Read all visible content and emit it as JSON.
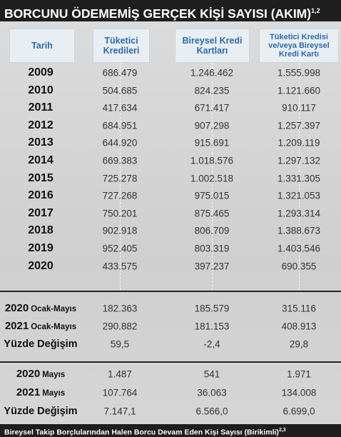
{
  "title": "BORCUNU ÖDEMEMİŞ GERÇEK KİŞİ SAYISI (AKIM)",
  "title_note": "1,2",
  "headers": [
    "Tarih",
    "Tüketici Kredileri",
    "Bireysel Kredi Kartları",
    "Tüketici Kredisi ve/veya Bireysel Kredi Kartı"
  ],
  "sections": [
    {
      "rows": [
        {
          "label": [
            "2009"
          ],
          "cells": [
            "686.479",
            "1.246.462",
            "1.555.998"
          ]
        },
        {
          "label": [
            "2010"
          ],
          "cells": [
            "504.685",
            "824.235",
            "1.121.660"
          ]
        },
        {
          "label": [
            "2011"
          ],
          "cells": [
            "417.634",
            "671.417",
            "910.117"
          ]
        },
        {
          "label": [
            "2012"
          ],
          "cells": [
            "684.951",
            "907.298",
            "1.257.397"
          ]
        },
        {
          "label": [
            "2013"
          ],
          "cells": [
            "644.920",
            "915.691",
            "1.209.119"
          ]
        },
        {
          "label": [
            "2014"
          ],
          "cells": [
            "669.383",
            "1.018.576",
            "1.297.132"
          ]
        },
        {
          "label": [
            "2015"
          ],
          "cells": [
            "725.278",
            "1.002.518",
            "1.331.305"
          ]
        },
        {
          "label": [
            "2016"
          ],
          "cells": [
            "727.268",
            "975.015",
            "1.321.053"
          ]
        },
        {
          "label": [
            "2017"
          ],
          "cells": [
            "750.201",
            "875.465",
            "1.293.314"
          ]
        },
        {
          "label": [
            "2018"
          ],
          "cells": [
            "902.918",
            "806.709",
            "1.388.673"
          ]
        },
        {
          "label": [
            "2019"
          ],
          "cells": [
            "952.405",
            "803.319",
            "1.403.546"
          ]
        },
        {
          "label": [
            "2020"
          ],
          "cells": [
            "433.575",
            "397.237",
            "690.355"
          ]
        }
      ]
    },
    {
      "rows": [
        {
          "label": [
            "2020",
            "Ocak-Mayıs"
          ],
          "cells": [
            "182.363",
            "185.579",
            "315.116"
          ]
        },
        {
          "label": [
            "2021",
            "Ocak-Mayıs"
          ],
          "cells": [
            "290.882",
            "181.153",
            "408.913"
          ]
        },
        {
          "label": [
            "Yüzde Değişim"
          ],
          "cells": [
            "59,5",
            "-2,4",
            "29,8"
          ]
        }
      ]
    },
    {
      "rows": [
        {
          "label": [
            "2020",
            "Mayıs"
          ],
          "cells": [
            "1.487",
            "541",
            "1.971"
          ]
        },
        {
          "label": [
            "2021",
            "Mayıs"
          ],
          "cells": [
            "107.764",
            "36.063",
            "134.008"
          ]
        },
        {
          "label": [
            "Yüzde Değişim"
          ],
          "cells": [
            "7.147,1",
            "6.566,0",
            "6.699,0"
          ]
        }
      ]
    }
  ],
  "footer": "Bireysel Takip Borçlularından Halen Borcu Devam Eden Kişi Sayısı (Birikimli)",
  "footer_note": "2,3"
}
